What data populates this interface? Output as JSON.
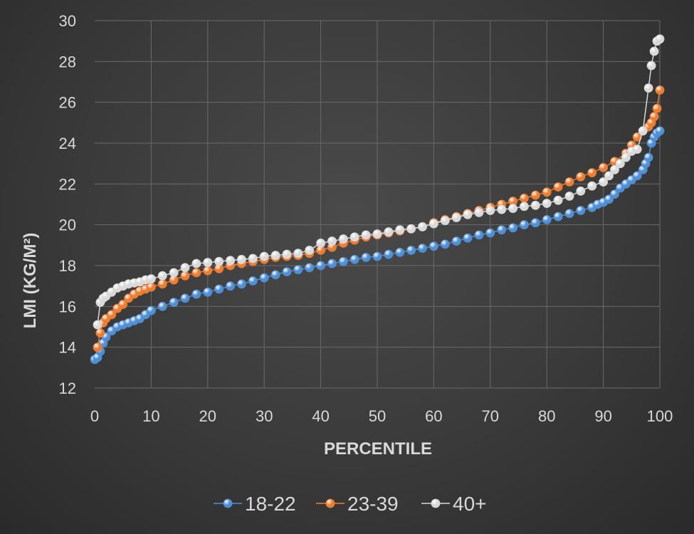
{
  "chart_data": {
    "type": "line",
    "xlabel": "PERCENTILE",
    "ylabel": "LMI (KG/M²)",
    "xlim": [
      0,
      100
    ],
    "ylim": [
      12,
      30
    ],
    "xticks": [
      0,
      10,
      20,
      30,
      40,
      50,
      60,
      70,
      80,
      90,
      100
    ],
    "yticks": [
      12,
      14,
      16,
      18,
      20,
      22,
      24,
      26,
      28,
      30
    ],
    "grid": true,
    "legend_position": "bottom",
    "series": [
      {
        "name": "18-22",
        "color": "#4f8fd6",
        "x": [
          0,
          0.5,
          1,
          1.5,
          2,
          3,
          4,
          5,
          6,
          7,
          8,
          9,
          10,
          12,
          14,
          16,
          18,
          20,
          22,
          24,
          26,
          28,
          30,
          32,
          34,
          36,
          38,
          40,
          42,
          44,
          46,
          48,
          50,
          52,
          54,
          56,
          58,
          60,
          62,
          64,
          66,
          68,
          70,
          72,
          74,
          76,
          78,
          80,
          82,
          84,
          86,
          88,
          89,
          90,
          91,
          92,
          93,
          94,
          95,
          96,
          97,
          97.5,
          98,
          98.5,
          99,
          99.5,
          100
        ],
        "y": [
          13.4,
          13.5,
          13.8,
          14.2,
          14.5,
          14.8,
          15.0,
          15.1,
          15.2,
          15.3,
          15.4,
          15.6,
          15.8,
          16.0,
          16.2,
          16.4,
          16.6,
          16.7,
          16.85,
          17.0,
          17.1,
          17.25,
          17.4,
          17.55,
          17.7,
          17.8,
          17.9,
          18.0,
          18.1,
          18.2,
          18.3,
          18.4,
          18.45,
          18.55,
          18.65,
          18.75,
          18.85,
          18.95,
          19.05,
          19.2,
          19.35,
          19.5,
          19.6,
          19.75,
          19.85,
          20.0,
          20.1,
          20.25,
          20.4,
          20.55,
          20.7,
          20.85,
          21.0,
          21.1,
          21.25,
          21.5,
          21.8,
          22.0,
          22.2,
          22.4,
          22.7,
          23.0,
          23.3,
          24.0,
          24.3,
          24.5,
          24.6
        ]
      },
      {
        "name": "23-39",
        "color": "#ed7d31",
        "x": [
          0.5,
          1,
          1.5,
          2,
          3,
          4,
          5,
          6,
          7,
          8,
          9,
          10,
          12,
          14,
          16,
          18,
          20,
          22,
          24,
          26,
          28,
          30,
          32,
          34,
          36,
          38,
          40,
          42,
          44,
          46,
          48,
          50,
          52,
          54,
          56,
          58,
          60,
          62,
          64,
          66,
          68,
          70,
          72,
          74,
          76,
          78,
          80,
          82,
          84,
          86,
          88,
          90,
          92,
          94,
          95,
          96,
          97,
          98,
          98.5,
          99,
          99.5,
          100
        ],
        "y": [
          14.0,
          14.7,
          15.2,
          15.4,
          15.6,
          15.9,
          16.1,
          16.4,
          16.6,
          16.75,
          16.85,
          16.95,
          17.1,
          17.3,
          17.5,
          17.65,
          17.75,
          17.85,
          18.0,
          18.1,
          18.2,
          18.3,
          18.4,
          18.45,
          18.5,
          18.6,
          18.75,
          18.9,
          19.1,
          19.25,
          19.4,
          19.5,
          19.6,
          19.7,
          19.8,
          19.9,
          20.1,
          20.25,
          20.4,
          20.55,
          20.7,
          20.85,
          21.0,
          21.15,
          21.3,
          21.45,
          21.6,
          21.85,
          22.1,
          22.35,
          22.55,
          22.8,
          23.1,
          23.5,
          23.9,
          24.3,
          24.6,
          24.8,
          25.0,
          25.3,
          25.7,
          26.6
        ]
      },
      {
        "name": "40+",
        "color": "#d9d9d9",
        "x": [
          0.5,
          1,
          1.5,
          2,
          3,
          4,
          5,
          6,
          7,
          8,
          9,
          10,
          12,
          14,
          16,
          18,
          20,
          22,
          24,
          26,
          28,
          30,
          32,
          34,
          36,
          38,
          40,
          42,
          44,
          46,
          48,
          50,
          52,
          54,
          56,
          58,
          60,
          62,
          64,
          66,
          68,
          70,
          72,
          74,
          76,
          78,
          80,
          82,
          84,
          86,
          88,
          90,
          91,
          92,
          93,
          94,
          95,
          96,
          97,
          98,
          98.5,
          99,
          99.5,
          100
        ],
        "y": [
          15.1,
          16.2,
          16.4,
          16.5,
          16.7,
          16.9,
          17.0,
          17.1,
          17.15,
          17.2,
          17.3,
          17.35,
          17.5,
          17.65,
          17.9,
          18.1,
          18.15,
          18.2,
          18.25,
          18.3,
          18.35,
          18.45,
          18.5,
          18.55,
          18.6,
          18.75,
          19.1,
          19.2,
          19.3,
          19.4,
          19.5,
          19.55,
          19.65,
          19.75,
          19.8,
          19.9,
          20.05,
          20.2,
          20.35,
          20.5,
          20.6,
          20.7,
          20.75,
          20.8,
          20.9,
          20.95,
          21.05,
          21.2,
          21.4,
          21.65,
          21.9,
          22.1,
          22.4,
          22.7,
          23.0,
          23.3,
          23.6,
          23.7,
          24.6,
          26.7,
          27.8,
          28.5,
          29.0,
          29.1
        ]
      }
    ]
  }
}
